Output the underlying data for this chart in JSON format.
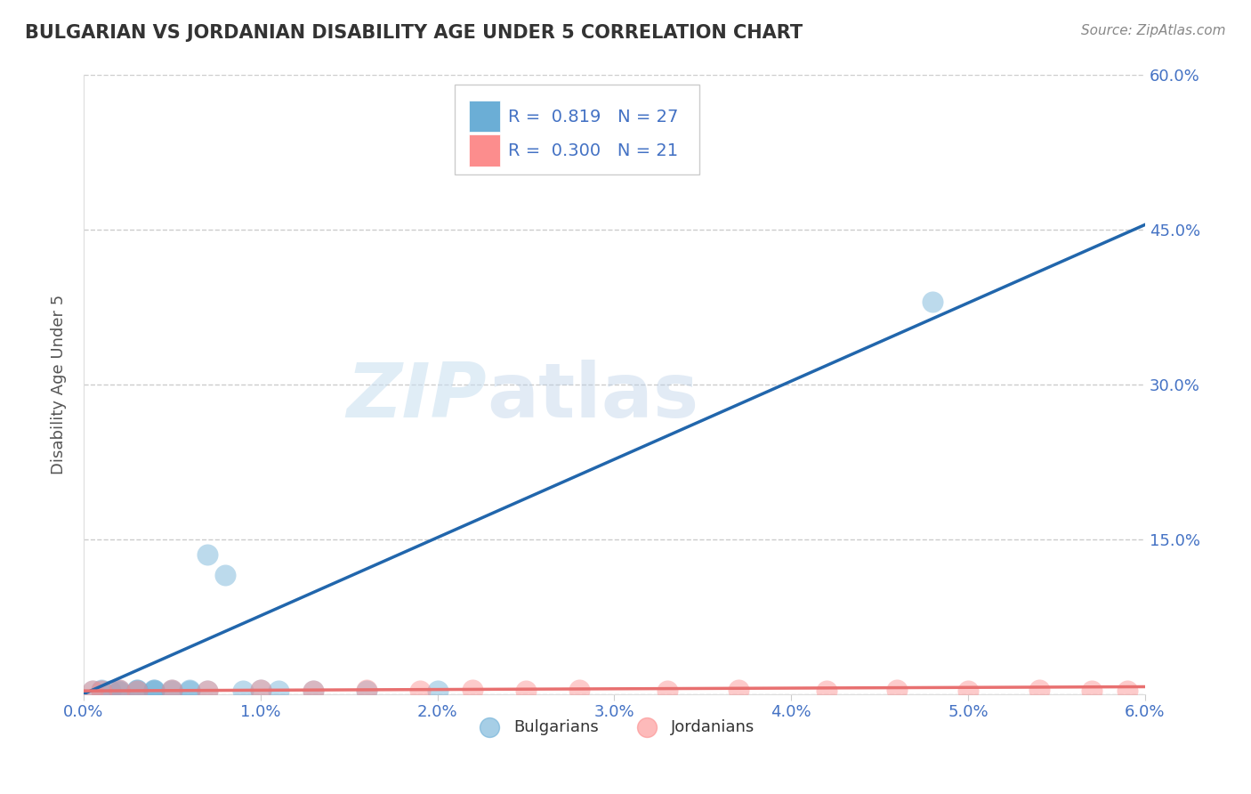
{
  "title": "BULGARIAN VS JORDANIAN DISABILITY AGE UNDER 5 CORRELATION CHART",
  "source": "Source: ZipAtlas.com",
  "ylabel": "Disability Age Under 5",
  "xlabel": "",
  "xlim": [
    0.0,
    0.06
  ],
  "ylim": [
    0.0,
    0.6
  ],
  "xticks": [
    0.0,
    0.01,
    0.02,
    0.03,
    0.04,
    0.05,
    0.06
  ],
  "xtick_labels": [
    "0.0%",
    "1.0%",
    "2.0%",
    "3.0%",
    "4.0%",
    "5.0%",
    "6.0%"
  ],
  "yticks": [
    0.0,
    0.15,
    0.3,
    0.45,
    0.6
  ],
  "ytick_labels_right": [
    "60.0%",
    "45.0%",
    "30.0%",
    "15.0%",
    ""
  ],
  "bulgarian_color": "#6baed6",
  "jordanian_color": "#fc8d8d",
  "bulgarian_line_color": "#2166ac",
  "jordanian_line_color": "#e87070",
  "bulgarian_R": 0.819,
  "bulgarian_N": 27,
  "jordanian_R": 0.3,
  "jordanian_N": 21,
  "watermark_zip": "ZIP",
  "watermark_atlas": "atlas",
  "bg_color": "#ffffff",
  "grid_color": "#cccccc",
  "title_color": "#333333",
  "axis_label_color": "#555555",
  "tick_label_color": "#4472c4",
  "right_tick_color": "#4472c4",
  "bulgarian_points_x": [
    0.0005,
    0.001,
    0.001,
    0.0015,
    0.002,
    0.002,
    0.002,
    0.003,
    0.003,
    0.003,
    0.004,
    0.004,
    0.004,
    0.005,
    0.005,
    0.006,
    0.006,
    0.007,
    0.007,
    0.008,
    0.009,
    0.01,
    0.011,
    0.013,
    0.016,
    0.02,
    0.048
  ],
  "bulgarian_points_y": [
    0.003,
    0.003,
    0.004,
    0.003,
    0.002,
    0.003,
    0.004,
    0.003,
    0.004,
    0.004,
    0.003,
    0.004,
    0.004,
    0.003,
    0.004,
    0.003,
    0.004,
    0.003,
    0.135,
    0.115,
    0.003,
    0.004,
    0.003,
    0.003,
    0.003,
    0.003,
    0.38
  ],
  "jordanian_points_x": [
    0.0005,
    0.001,
    0.002,
    0.003,
    0.005,
    0.007,
    0.01,
    0.013,
    0.016,
    0.019,
    0.022,
    0.025,
    0.028,
    0.033,
    0.037,
    0.042,
    0.046,
    0.05,
    0.054,
    0.057,
    0.059
  ],
  "jordanian_points_y": [
    0.003,
    0.003,
    0.004,
    0.003,
    0.004,
    0.003,
    0.004,
    0.003,
    0.004,
    0.003,
    0.004,
    0.003,
    0.004,
    0.003,
    0.004,
    0.003,
    0.004,
    0.003,
    0.004,
    0.003,
    0.003
  ],
  "bg_line_x0": 0.0,
  "bg_line_y0": 0.0,
  "bg_line_x1": 0.06,
  "bg_line_y1": 0.455,
  "jo_line_x0": 0.0,
  "jo_line_y0": 0.003,
  "jo_line_x1": 0.06,
  "jo_line_y1": 0.007
}
